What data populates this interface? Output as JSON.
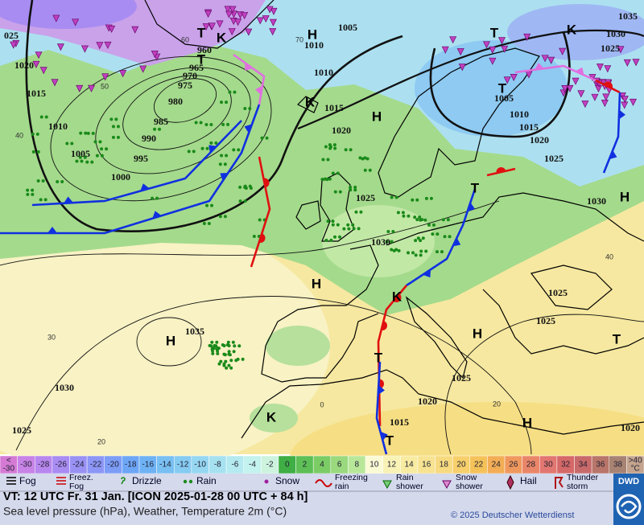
{
  "map": {
    "isobar_labels": [
      "025",
      1020,
      1015,
      1010,
      1005,
      1000,
      995,
      990,
      985,
      980,
      975,
      970,
      965,
      960,
      1005,
      1010,
      1010,
      1015,
      1020,
      1025,
      1030,
      1035,
      1030,
      1025,
      1035,
      1030,
      1025,
      1005,
      1010,
      1015,
      1020,
      1025,
      1030,
      1025,
      1025,
      1025,
      1020,
      1015,
      1020
    ],
    "pressure_centers": [
      "H",
      "T",
      "T",
      "K",
      "H",
      "H",
      "H",
      "H",
      "H",
      "H",
      "T",
      "T",
      "T",
      "T",
      "T",
      "T",
      "K",
      "K",
      "K",
      "K"
    ],
    "temperature_labels": [
      40,
      50,
      60,
      70,
      30,
      20,
      0,
      20,
      40
    ]
  },
  "colorbar": {
    "below": {
      "lines": [
        "<",
        "-30"
      ],
      "color": "#d47ad4"
    },
    "values": [
      -30,
      -28,
      -26,
      -24,
      -22,
      -20,
      -18,
      -16,
      -14,
      -12,
      -10,
      -8,
      -6,
      -4,
      -2,
      0,
      2,
      4,
      6,
      8,
      10,
      12,
      14,
      16,
      18,
      20,
      22,
      24,
      26,
      28,
      30,
      32,
      34,
      36,
      38
    ],
    "colors": [
      "#c883e6",
      "#b887ee",
      "#a98cf2",
      "#9a91f4",
      "#8c96f6",
      "#7c9cf6",
      "#6ea6f6",
      "#6fb2f4",
      "#78bff2",
      "#86cbf2",
      "#96d7f2",
      "#a6e1f0",
      "#b4eaf0",
      "#c4f2ee",
      "#cdf3de",
      "#3fae45",
      "#5dbf55",
      "#7ccc66",
      "#9ad97e",
      "#b8e79a",
      "#fafad4",
      "#f8f2b6",
      "#f8eba2",
      "#f7e391",
      "#f7da80",
      "#f7d06c",
      "#f5c25a",
      "#f2ad55",
      "#ef985e",
      "#ea8668",
      "#e27670",
      "#d56868",
      "#c8696a",
      "#b87569",
      "#a88373"
    ],
    "above": {
      "lines": [
        ">40",
        "°C"
      ],
      "color": "#c4a48e"
    }
  },
  "legend": [
    [
      "Fog"
    ],
    [
      "Freez.",
      "Fog"
    ],
    [
      "Drizzle"
    ],
    [
      "Rain"
    ],
    [
      "Snow"
    ],
    [
      "Freezing",
      "rain"
    ],
    [
      "Rain",
      "shower"
    ],
    [
      "Snow",
      "shower"
    ],
    [
      "Hail"
    ],
    [
      "Thunder",
      "storm"
    ]
  ],
  "footer": {
    "valid_time": "VT: 12 UTC Fr.  31 Jan. [ICON 2025-01-28  00 UTC + 84 h]",
    "description": "Sea level pressure (hPa), Weather, Temperature 2m (°C)",
    "copyright": "© 2025 Deutscher Wetterdienst",
    "logo": "DWD"
  }
}
